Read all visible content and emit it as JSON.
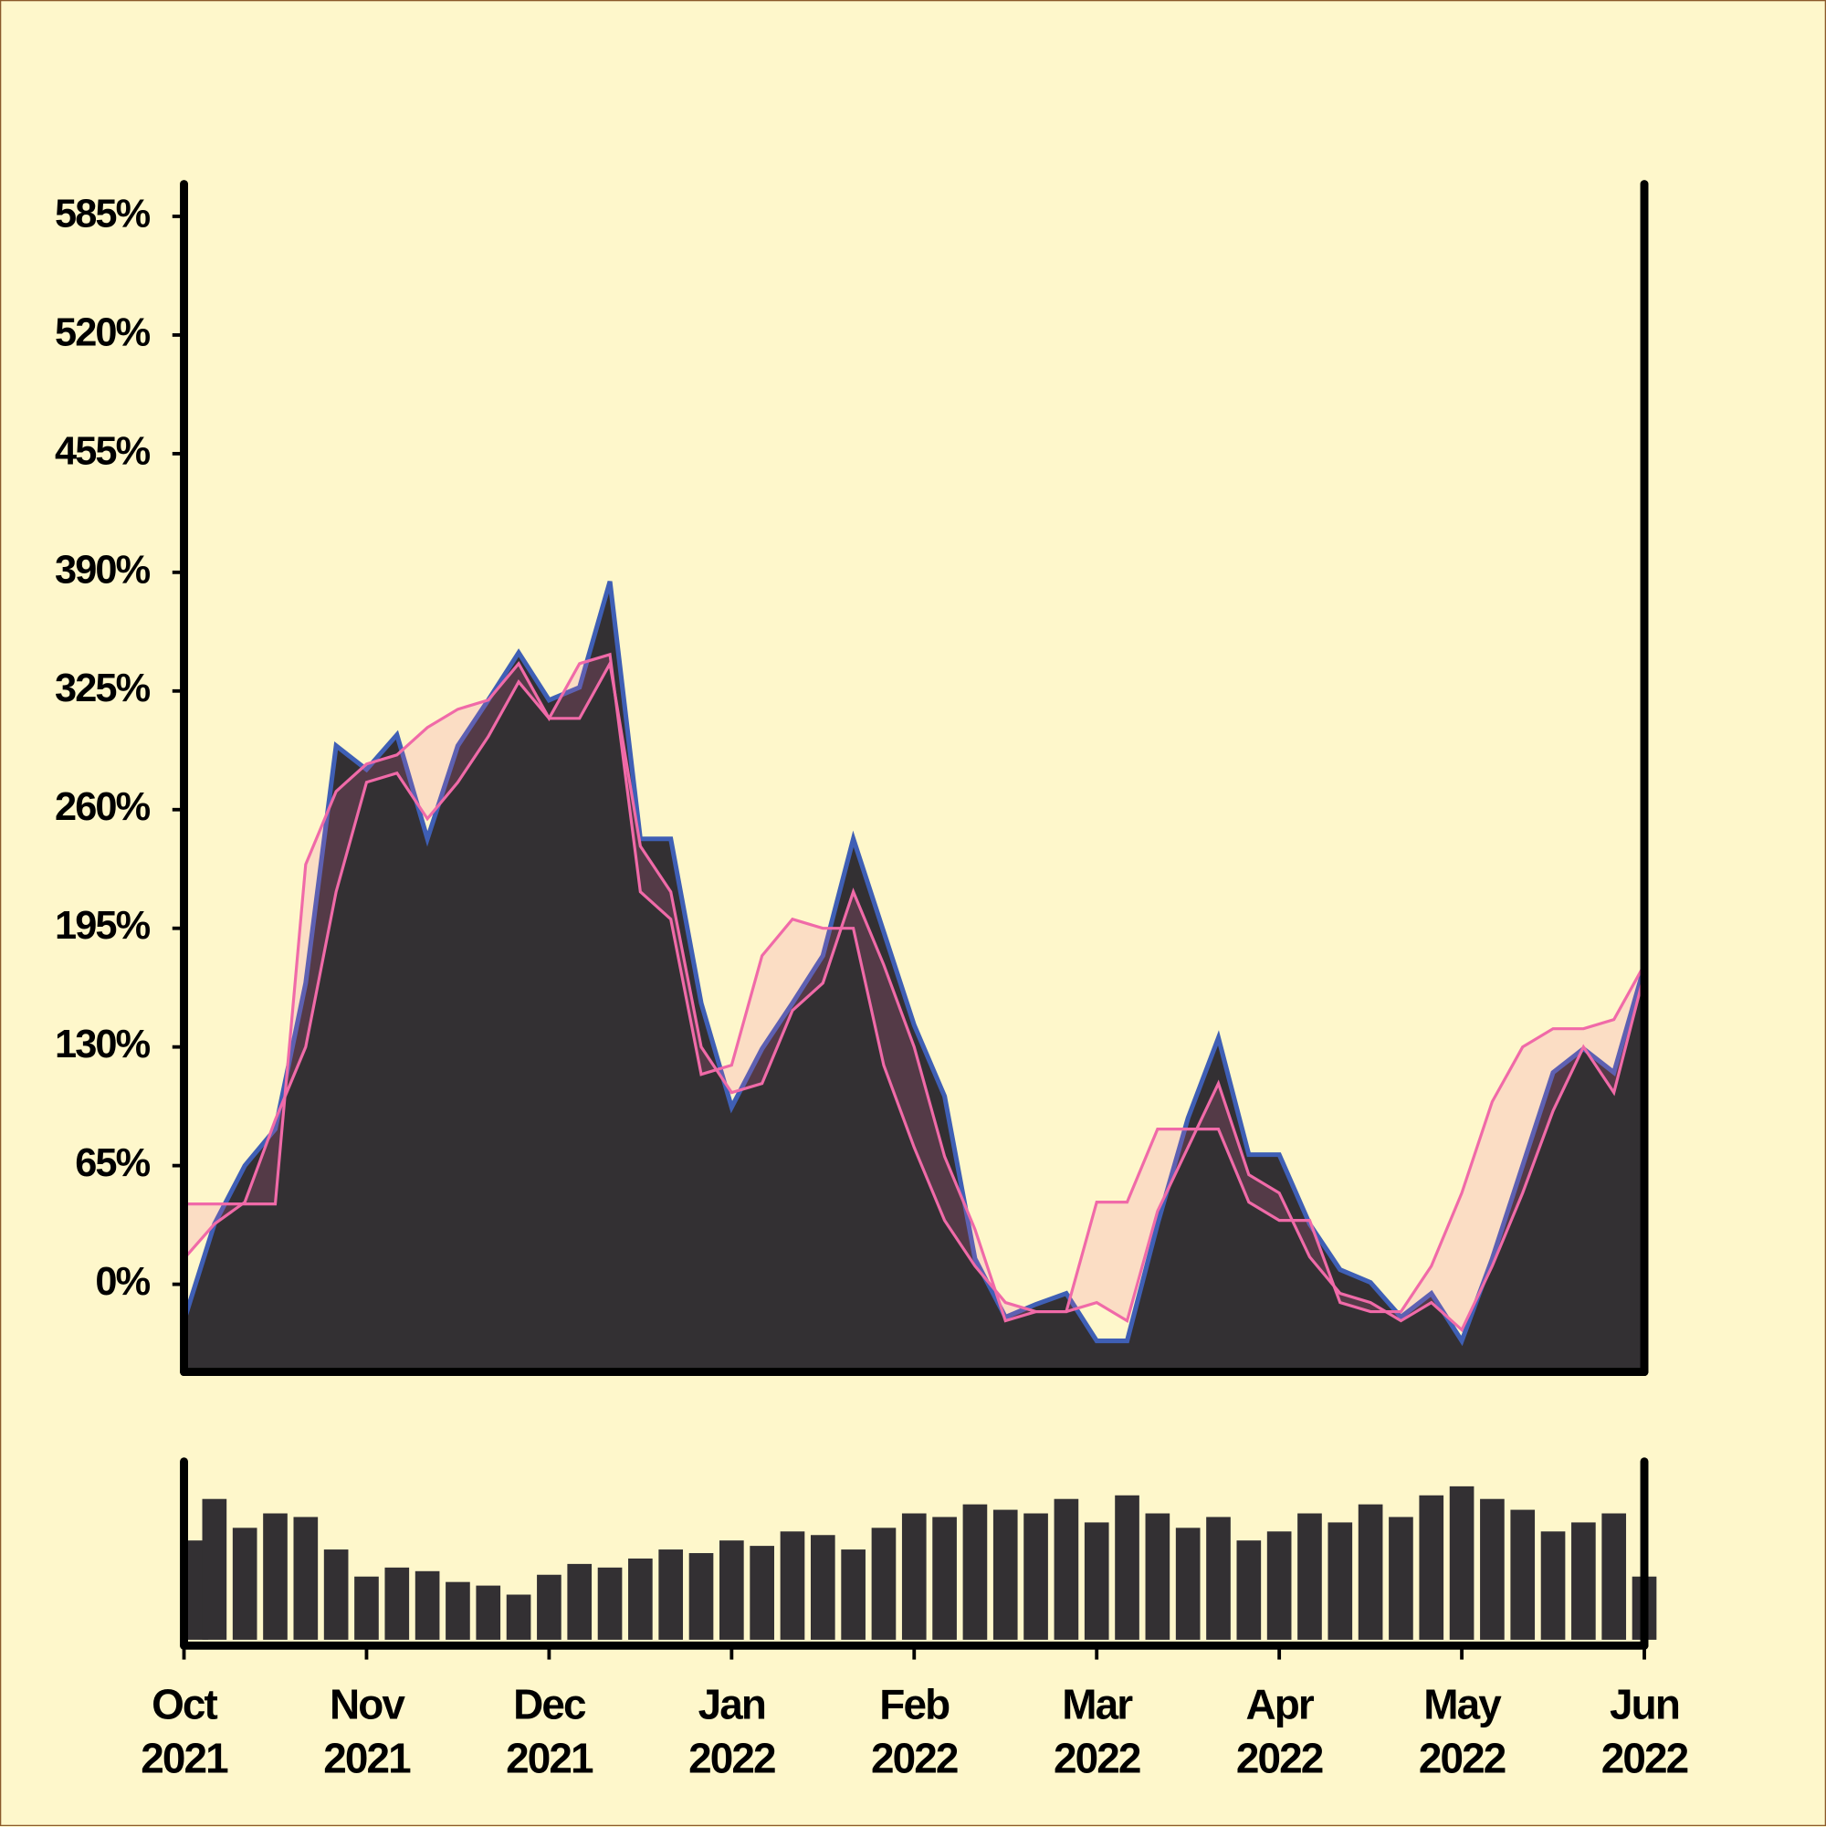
{
  "chart_data": [
    {
      "type": "area",
      "ylim": [
        -48,
        604
      ],
      "yticks": [
        {
          "value": 0,
          "label": "0%"
        },
        {
          "value": 65,
          "label": "65%"
        },
        {
          "value": 130,
          "label": "130%"
        },
        {
          "value": 195,
          "label": "195%"
        },
        {
          "value": 260,
          "label": "260%"
        },
        {
          "value": 325,
          "label": "325%"
        },
        {
          "value": 390,
          "label": "390%"
        },
        {
          "value": 455,
          "label": "455%"
        },
        {
          "value": 520,
          "label": "520%"
        },
        {
          "value": 585,
          "label": "585%"
        }
      ],
      "series": [
        {
          "color": "#3f5fb5",
          "fill": "#333033",
          "values": [
            -20,
            33,
            65,
            85,
            165,
            295,
            282,
            301,
            244,
            295,
            320,
            346,
            320,
            327,
            385,
            244,
            244,
            154,
            97,
            129,
            154,
            180,
            244,
            193,
            142,
            103,
            14,
            -18,
            -11,
            -5,
            -31,
            -31,
            33,
            91,
            135,
            71,
            71,
            33,
            8,
            1,
            -18,
            -5,
            -31,
            14,
            65,
            116,
            129,
            116,
            174
          ]
        },
        {
          "color": "#f06aa8",
          "values": [
            14,
            33,
            45,
            90,
            130,
            215,
            275,
            280,
            255,
            275,
            300,
            330,
            310,
            310,
            340,
            240,
            215,
            130,
            105,
            110,
            150,
            165,
            215,
            175,
            130,
            70,
            30,
            -20,
            -15,
            -15,
            -10,
            -20,
            40,
            75,
            110,
            60,
            50,
            15,
            -5,
            -10,
            -20,
            -10,
            -25,
            10,
            50,
            95,
            130,
            105,
            170
          ]
        },
        {
          "color": "#f06aa8",
          "values": [
            44,
            44,
            44,
            44,
            230,
            270,
            285,
            290,
            305,
            315,
            320,
            340,
            310,
            340,
            345,
            215,
            200,
            115,
            120,
            180,
            200,
            195,
            195,
            120,
            75,
            35,
            10,
            -10,
            -15,
            -15,
            45,
            45,
            85,
            85,
            85,
            45,
            35,
            35,
            -10,
            -15,
            -15,
            10,
            50,
            100,
            130,
            140,
            140,
            145,
            175
          ]
        }
      ]
    },
    {
      "type": "bar",
      "categories": [
        "Oct\n2021",
        null,
        null,
        null,
        null,
        null,
        "Nov\n2021",
        null,
        null,
        null,
        null,
        null,
        "Dec\n2021",
        null,
        null,
        null,
        null,
        null,
        "Jan\n2022",
        null,
        null,
        null,
        null,
        null,
        "Feb\n2022",
        null,
        null,
        null,
        null,
        null,
        "Mar\n2022",
        null,
        null,
        null,
        null,
        null,
        "Apr\n2022",
        null,
        null,
        null,
        null,
        null,
        "May\n2022",
        null,
        null,
        null,
        null,
        null,
        "Jun\n2022"
      ],
      "ylim": [
        0,
        100
      ],
      "color": "#333033",
      "values": [
        55,
        78,
        62,
        70,
        68,
        50,
        35,
        40,
        38,
        32,
        30,
        25,
        36,
        42,
        40,
        45,
        50,
        48,
        55,
        52,
        60,
        58,
        50,
        62,
        70,
        68,
        75,
        72,
        70,
        78,
        65,
        80,
        70,
        62,
        68,
        55,
        60,
        70,
        65,
        75,
        68,
        80,
        85,
        78,
        72,
        60,
        65,
        70,
        35
      ]
    }
  ]
}
